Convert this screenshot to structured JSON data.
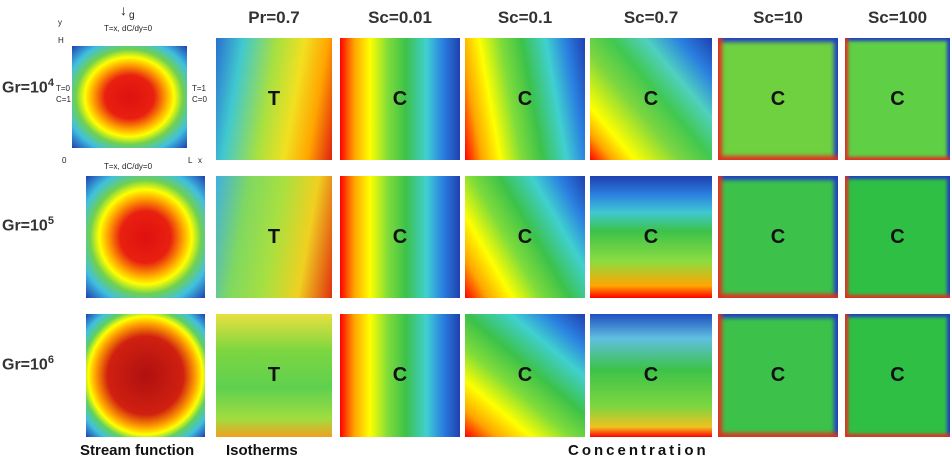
{
  "columns": [
    "Pr=0.7",
    "Sc=0.01",
    "Sc=0.1",
    "Sc=0.7",
    "Sc=10",
    "Sc=100"
  ],
  "rows": [
    {
      "label": {
        "base": "Gr=10",
        "exp": "4"
      },
      "cells": [
        "T",
        "C",
        "C",
        "C",
        "C",
        "C"
      ]
    },
    {
      "label": {
        "base": "Gr=10",
        "exp": "5"
      },
      "cells": [
        "T",
        "C",
        "C",
        "C",
        "C",
        "C"
      ]
    },
    {
      "label": {
        "base": "Gr=10",
        "exp": "6"
      },
      "cells": [
        "T",
        "C",
        "C",
        "C",
        "C",
        "C"
      ]
    }
  ],
  "domain": {
    "y_axis": "y",
    "height": "H",
    "origin": "0",
    "length": "L",
    "x_axis": "x",
    "gravity": "g",
    "top_bc": "T=x, dC/dy=0",
    "bottom_bc": "T=x, dC/dy=0",
    "left_t": "T=0",
    "left_c": "C=1",
    "right_t": "T=1",
    "right_c": "C=0"
  },
  "footer": {
    "stream": "Stream function",
    "isotherms": "Isotherms",
    "concentration": "Concentration"
  }
}
